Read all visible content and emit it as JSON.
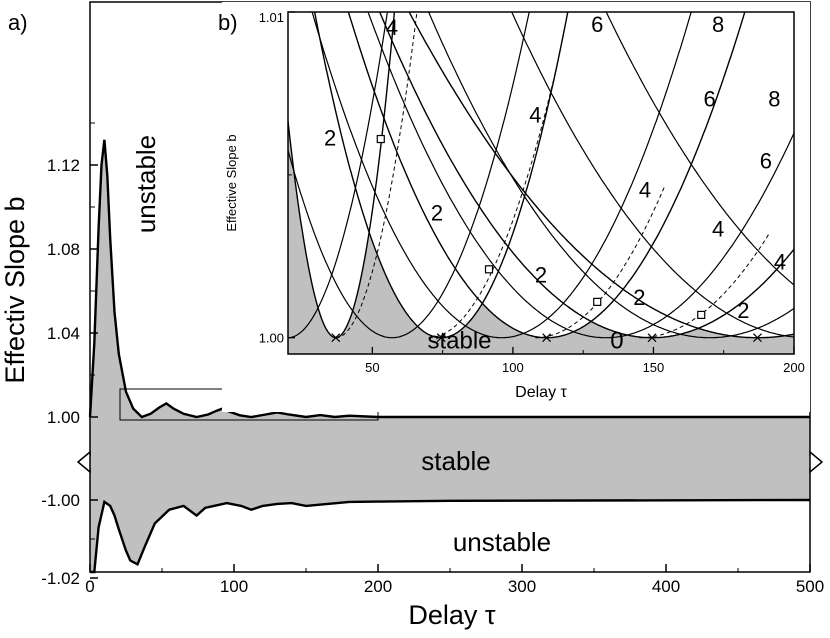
{
  "chart_data": [
    {
      "type": "area",
      "panel_label": "a)",
      "xlabel": "Delay τ",
      "ylabel": "Effectiv Slope b",
      "xlim": [
        0,
        500
      ],
      "x_ticks": [
        "0",
        "100",
        "200",
        "300",
        "400",
        "500"
      ],
      "y_ticks_upper": [
        "1.00",
        "1.04",
        "1.08",
        "1.12"
      ],
      "y_ticks_lower": [
        "-1.00",
        "-1.02"
      ],
      "y_axis_break": true,
      "upper_ylim": [
        0.982,
        1.148
      ],
      "lower_ylim": [
        -1.026,
        -0.995
      ],
      "upper_boundary": {
        "x": [
          0,
          3,
          6,
          8,
          10,
          12,
          14,
          17,
          20,
          25,
          30,
          36,
          42,
          48,
          53,
          58,
          65,
          74,
          82,
          88,
          92,
          97,
          104,
          112,
          122,
          130,
          138,
          150,
          160,
          170,
          180,
          200,
          500
        ],
        "y": [
          1.0,
          1.035,
          1.09,
          1.12,
          1.132,
          1.115,
          1.085,
          1.05,
          1.03,
          1.012,
          1.004,
          1.0,
          1.0015,
          1.0045,
          1.0065,
          1.004,
          1.0015,
          1.0,
          1.0012,
          1.003,
          1.004,
          1.0025,
          1.0008,
          1.0,
          1.0012,
          1.0022,
          1.0012,
          1.0,
          1.0009,
          1.0,
          1.0006,
          1.0,
          1.0
        ]
      },
      "lower_boundary": {
        "x": [
          0,
          3,
          6,
          10,
          14,
          17,
          20,
          25,
          28,
          33,
          38,
          45,
          55,
          65,
          74,
          80,
          90,
          95,
          105,
          112,
          120,
          130,
          140,
          150,
          165,
          180,
          200,
          250,
          500
        ],
        "y": [
          -1.0245,
          -1.02,
          -1.007,
          -1.0005,
          -1.0015,
          -1.004,
          -1.0075,
          -1.013,
          -1.0155,
          -1.0165,
          -1.012,
          -1.006,
          -1.0025,
          -1.0015,
          -1.004,
          -1.002,
          -1.0012,
          -1.0008,
          -1.0015,
          -1.0025,
          -1.0015,
          -1.001,
          -1.0008,
          -1.0015,
          -1.001,
          -1.0005,
          -1.0004,
          -1.0002,
          -1.0
        ]
      },
      "regions": [
        {
          "label": "unstable",
          "where": "above upper boundary"
        },
        {
          "label": "stable",
          "where": "between boundaries"
        },
        {
          "label": "unstable",
          "where": "below lower boundary"
        }
      ],
      "zoom_box": {
        "x": [
          20,
          200
        ],
        "y": [
          1.0,
          1.01
        ]
      }
    },
    {
      "type": "line",
      "panel_label": "b)",
      "xlabel": "Delay τ",
      "ylabel": "Effective Slope b",
      "xlim": [
        20,
        200
      ],
      "ylim": [
        0.9995,
        1.01
      ],
      "x_ticks": [
        "50",
        "100",
        "150",
        "200"
      ],
      "y_ticks": [
        "1.00",
        "1.01"
      ],
      "minima_tau": [
        37,
        74.5,
        112,
        149.5,
        187
      ],
      "square_markers": [
        {
          "x": 53,
          "y": 1.0061
        },
        {
          "x": 91.5,
          "y": 1.0021
        },
        {
          "x": 130,
          "y": 1.0011
        },
        {
          "x": 167,
          "y": 1.0007
        }
      ],
      "region_labels": [
        {
          "text": "stable",
          "x": 81,
          "y": 0.99955
        },
        {
          "text": "0",
          "x": 137,
          "y": 0.99955
        }
      ],
      "mode_labels": [
        {
          "text": "2",
          "x": 35,
          "y": 1.0059
        },
        {
          "text": "2",
          "x": 73,
          "y": 1.0036
        },
        {
          "text": "2",
          "x": 110,
          "y": 1.0017
        },
        {
          "text": "2",
          "x": 145,
          "y": 1.001
        },
        {
          "text": "2",
          "x": 182,
          "y": 1.0006
        },
        {
          "text": "4",
          "x": 57,
          "y": 1.0093
        },
        {
          "text": "4",
          "x": 108,
          "y": 1.0066
        },
        {
          "text": "4",
          "x": 147,
          "y": 1.0043
        },
        {
          "text": "4",
          "x": 173,
          "y": 1.0031
        },
        {
          "text": "4",
          "x": 195,
          "y": 1.0021
        },
        {
          "text": "6",
          "x": 130,
          "y": 1.0094
        },
        {
          "text": "6",
          "x": 170,
          "y": 1.0071
        },
        {
          "text": "6",
          "x": 190,
          "y": 1.0052
        },
        {
          "text": "8",
          "x": 173,
          "y": 1.0094
        },
        {
          "text": "8",
          "x": 193,
          "y": 1.0071
        }
      ]
    }
  ]
}
